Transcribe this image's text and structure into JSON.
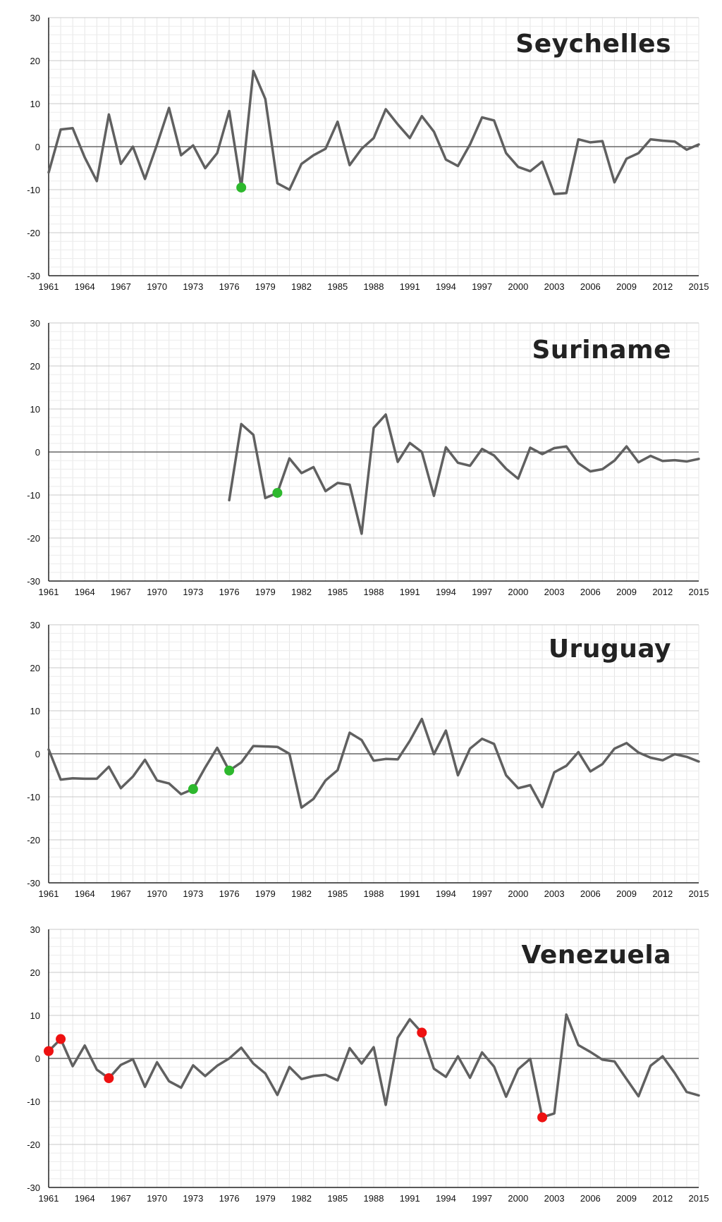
{
  "colors": {
    "line": "#606060",
    "highlight_green": "#2db82d",
    "highlight_red": "#ee1111",
    "grid": "#dddddd",
    "zero_line": "#666666"
  },
  "chart_data": [
    {
      "type": "line",
      "title": "Seychelles",
      "xlim": [
        1961,
        2015
      ],
      "ylim": [
        -30,
        30
      ],
      "grid": true,
      "y_ticks": [
        "30",
        "20",
        "10",
        "0",
        "-10",
        "-20",
        "-30"
      ],
      "x_ticks": [
        "1961",
        "1964",
        "1967",
        "1970",
        "1973",
        "1976",
        "1979",
        "1982",
        "1985",
        "1988",
        "1991",
        "1994",
        "1997",
        "2000",
        "2003",
        "2006",
        "2009",
        "2012",
        "2015"
      ],
      "x": [
        1961,
        1962,
        1963,
        1964,
        1965,
        1966,
        1967,
        1968,
        1969,
        1970,
        1971,
        1972,
        1973,
        1974,
        1975,
        1976,
        1977,
        1978,
        1979,
        1980,
        1981,
        1982,
        1983,
        1984,
        1985,
        1986,
        1987,
        1988,
        1989,
        1990,
        1991,
        1992,
        1993,
        1994,
        1995,
        1996,
        1997,
        1998,
        1999,
        2000,
        2001,
        2002,
        2003,
        2004,
        2005,
        2006,
        2007,
        2008,
        2009,
        2010,
        2011,
        2012,
        2013,
        2014,
        2015
      ],
      "y": [
        -6,
        4,
        4.3,
        -2.5,
        -8,
        7.5,
        -4,
        0,
        -7.5,
        0.5,
        9,
        -2,
        0.3,
        -5,
        -1.5,
        8.3,
        -9.5,
        17.6,
        11.1,
        -8.5,
        -10,
        -4,
        -2,
        -0.5,
        5.8,
        -4.3,
        -0.5,
        2,
        8.7,
        5.2,
        2,
        7.1,
        3.5,
        -3,
        -4.5,
        0.5,
        6.8,
        6.1,
        -1.5,
        -4.7,
        -5.7,
        -3.5,
        -11,
        -10.8,
        1.7,
        1,
        1.3,
        -8.3,
        -2.8,
        -1.5,
        1.7,
        1.4,
        1.2,
        -0.7,
        0.5
      ],
      "highlights": [
        {
          "x": 1977,
          "y": -9.5,
          "color": "green"
        }
      ]
    },
    {
      "type": "line",
      "title": "Suriname",
      "xlim": [
        1961,
        2015
      ],
      "ylim": [
        -30,
        30
      ],
      "grid": true,
      "y_ticks": [
        "30",
        "20",
        "10",
        "0",
        "-10",
        "-20",
        "-30"
      ],
      "x_ticks": [
        "1961",
        "1964",
        "1967",
        "1970",
        "1973",
        "1976",
        "1979",
        "1982",
        "1985",
        "1988",
        "1991",
        "1994",
        "1997",
        "2000",
        "2003",
        "2006",
        "2009",
        "2012",
        "2015"
      ],
      "x": [
        1976,
        1977,
        1978,
        1979,
        1980,
        1981,
        1982,
        1983,
        1984,
        1985,
        1986,
        1987,
        1988,
        1989,
        1990,
        1991,
        1992,
        1993,
        1994,
        1995,
        1996,
        1997,
        1998,
        1999,
        2000,
        2001,
        2002,
        2003,
        2004,
        2005,
        2006,
        2007,
        2008,
        2009,
        2010,
        2011,
        2012,
        2013,
        2014,
        2015
      ],
      "y": [
        -11.2,
        6.5,
        4,
        -10.7,
        -9.5,
        -1.5,
        -4.9,
        -3.5,
        -9.1,
        -7.2,
        -7.6,
        -19,
        5.6,
        8.7,
        -2.3,
        2.1,
        0,
        -10.2,
        1.1,
        -2.5,
        -3.2,
        0.7,
        -0.8,
        -3.9,
        -6.2,
        1,
        -0.5,
        0.9,
        1.3,
        -2.6,
        -4.5,
        -4,
        -2,
        1.3,
        -2.4,
        -0.9,
        -2.1,
        -1.9,
        -2.2,
        -1.6
      ],
      "highlights": [
        {
          "x": 1980,
          "y": -9.5,
          "color": "green"
        }
      ]
    },
    {
      "type": "line",
      "title": "Uruguay",
      "xlim": [
        1961,
        2015
      ],
      "ylim": [
        -30,
        30
      ],
      "grid": true,
      "y_ticks": [
        "30",
        "20",
        "10",
        "0",
        "-10",
        "-20",
        "-30"
      ],
      "x_ticks": [
        "1961",
        "1964",
        "1967",
        "1970",
        "1973",
        "1976",
        "1979",
        "1982",
        "1985",
        "1988",
        "1991",
        "1994",
        "1997",
        "2000",
        "2003",
        "2006",
        "2009",
        "2012",
        "2015"
      ],
      "x": [
        1961,
        1962,
        1963,
        1964,
        1965,
        1966,
        1967,
        1968,
        1969,
        1970,
        1971,
        1972,
        1973,
        1974,
        1975,
        1976,
        1977,
        1978,
        1979,
        1980,
        1981,
        1982,
        1983,
        1984,
        1985,
        1986,
        1987,
        1988,
        1989,
        1990,
        1991,
        1992,
        1993,
        1994,
        1995,
        1996,
        1997,
        1998,
        1999,
        2000,
        2001,
        2002,
        2003,
        2004,
        2005,
        2006,
        2007,
        2008,
        2009,
        2010,
        2011,
        2012,
        2013,
        2014,
        2015
      ],
      "y": [
        1,
        -6,
        -5.7,
        -5.8,
        -5.8,
        -3,
        -8,
        -5.3,
        -1.4,
        -6.2,
        -6.9,
        -9.4,
        -8.2,
        -3.2,
        1.4,
        -3.9,
        -2,
        1.8,
        1.7,
        1.6,
        0,
        -12.5,
        -10.5,
        -6.2,
        -3.8,
        4.9,
        3.2,
        -1.6,
        -1.2,
        -1.3,
        3,
        8.1,
        -0.1,
        5.4,
        -5,
        1.2,
        3.5,
        2.3,
        -5,
        -8,
        -7.3,
        -12.4,
        -4.3,
        -2.8,
        0.4,
        -4.1,
        -2.4,
        1.2,
        2.5,
        0.3,
        -0.9,
        -1.5,
        -0.1,
        -0.7,
        -1.8
      ],
      "highlights": [
        {
          "x": 1973,
          "y": -8.2,
          "color": "green"
        },
        {
          "x": 1976,
          "y": -3.9,
          "color": "green"
        }
      ]
    },
    {
      "type": "line",
      "title": "Venezuela",
      "xlim": [
        1961,
        2015
      ],
      "ylim": [
        -30,
        30
      ],
      "grid": true,
      "y_ticks": [
        "30",
        "20",
        "10",
        "0",
        "-10",
        "-20",
        "-30"
      ],
      "x_ticks": [
        "1961",
        "1964",
        "1967",
        "1970",
        "1973",
        "1976",
        "1979",
        "1982",
        "1985",
        "1988",
        "1991",
        "1994",
        "1997",
        "2000",
        "2003",
        "2006",
        "2009",
        "2012",
        "2015"
      ],
      "x": [
        1961,
        1962,
        1963,
        1964,
        1965,
        1966,
        1967,
        1968,
        1969,
        1970,
        1971,
        1972,
        1973,
        1974,
        1975,
        1976,
        1977,
        1978,
        1979,
        1980,
        1981,
        1982,
        1983,
        1984,
        1985,
        1986,
        1987,
        1988,
        1989,
        1990,
        1991,
        1992,
        1993,
        1994,
        1995,
        1996,
        1997,
        1998,
        1999,
        2000,
        2001,
        2002,
        2003,
        2004,
        2005,
        2006,
        2007,
        2008,
        2009,
        2010,
        2011,
        2012,
        2013,
        2014,
        2015
      ],
      "y": [
        1.7,
        4.5,
        -1.8,
        3,
        -2.6,
        -4.6,
        -1.5,
        -0.2,
        -6.6,
        -0.9,
        -5.3,
        -6.8,
        -1.6,
        -4.1,
        -1.7,
        0,
        2.5,
        -1.2,
        -3.5,
        -8.5,
        -2,
        -4.8,
        -4.1,
        -3.8,
        -5.1,
        2.4,
        -1.2,
        2.6,
        -10.8,
        4.8,
        9.1,
        6,
        -2.4,
        -4.3,
        0.5,
        -4.5,
        1.4,
        -1.9,
        -8.9,
        -2.5,
        -0.1,
        -13.7,
        -12.8,
        10.2,
        3.1,
        1.5,
        -0.3,
        -0.7,
        -4.8,
        -8.8,
        -1.7,
        0.5,
        -3.4,
        -7.8,
        -8.6
      ],
      "highlights": [
        {
          "x": 1961,
          "y": 1.7,
          "color": "red"
        },
        {
          "x": 1962,
          "y": 4.5,
          "color": "red"
        },
        {
          "x": 1966,
          "y": -4.6,
          "color": "red"
        },
        {
          "x": 1992,
          "y": 6,
          "color": "red"
        },
        {
          "x": 2002,
          "y": -13.7,
          "color": "red"
        }
      ]
    }
  ]
}
